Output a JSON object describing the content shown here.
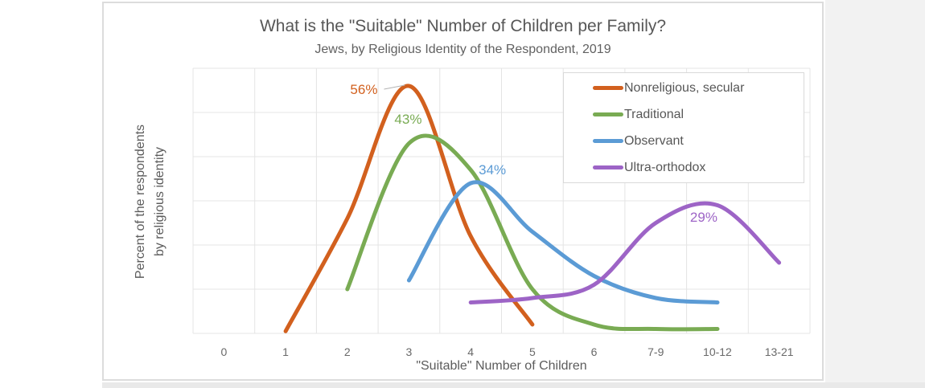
{
  "chart_data": {
    "type": "line",
    "title": "What is the \"Suitable\" Number of Children per Family?",
    "subtitle": "Jews, by Religious Identity of the Respondent, 2019",
    "xlabel": "\"Suitable\" Number of Children",
    "ylabel_lines": [
      "Percent of the respondents",
      "by religious identity"
    ],
    "categories": [
      "0",
      "1",
      "2",
      "3",
      "4",
      "5",
      "6",
      "7-9",
      "10-12",
      "13-21"
    ],
    "ylim": [
      0,
      60
    ],
    "y_gridline_step": 10,
    "grid": true,
    "legend_position": "top-right",
    "series": [
      {
        "name": "Nonreligious, secular",
        "color": "#d2601e",
        "values": [
          null,
          0.5,
          26,
          56,
          22,
          2,
          null,
          null,
          null,
          null
        ],
        "peak_label": "56%",
        "peak_category": "3"
      },
      {
        "name": "Traditional",
        "color": "#79ab53",
        "values": [
          null,
          null,
          10,
          43,
          37,
          10,
          2,
          1,
          1,
          null
        ],
        "peak_label": "43%",
        "peak_category": "3"
      },
      {
        "name": "Observant",
        "color": "#5b9bd5",
        "values": [
          null,
          null,
          null,
          12,
          34,
          23,
          13,
          8,
          7,
          null
        ],
        "peak_label": "34%",
        "peak_category": "4"
      },
      {
        "name": "Ultra-orthodox",
        "color": "#9d64c6",
        "values": [
          null,
          null,
          null,
          null,
          7,
          8,
          11,
          25,
          29,
          16
        ],
        "peak_label": "29%",
        "peak_category": "10-12"
      }
    ],
    "leader_line_color": "#b3b3b3",
    "gridline_color": "#e4e4e4"
  }
}
